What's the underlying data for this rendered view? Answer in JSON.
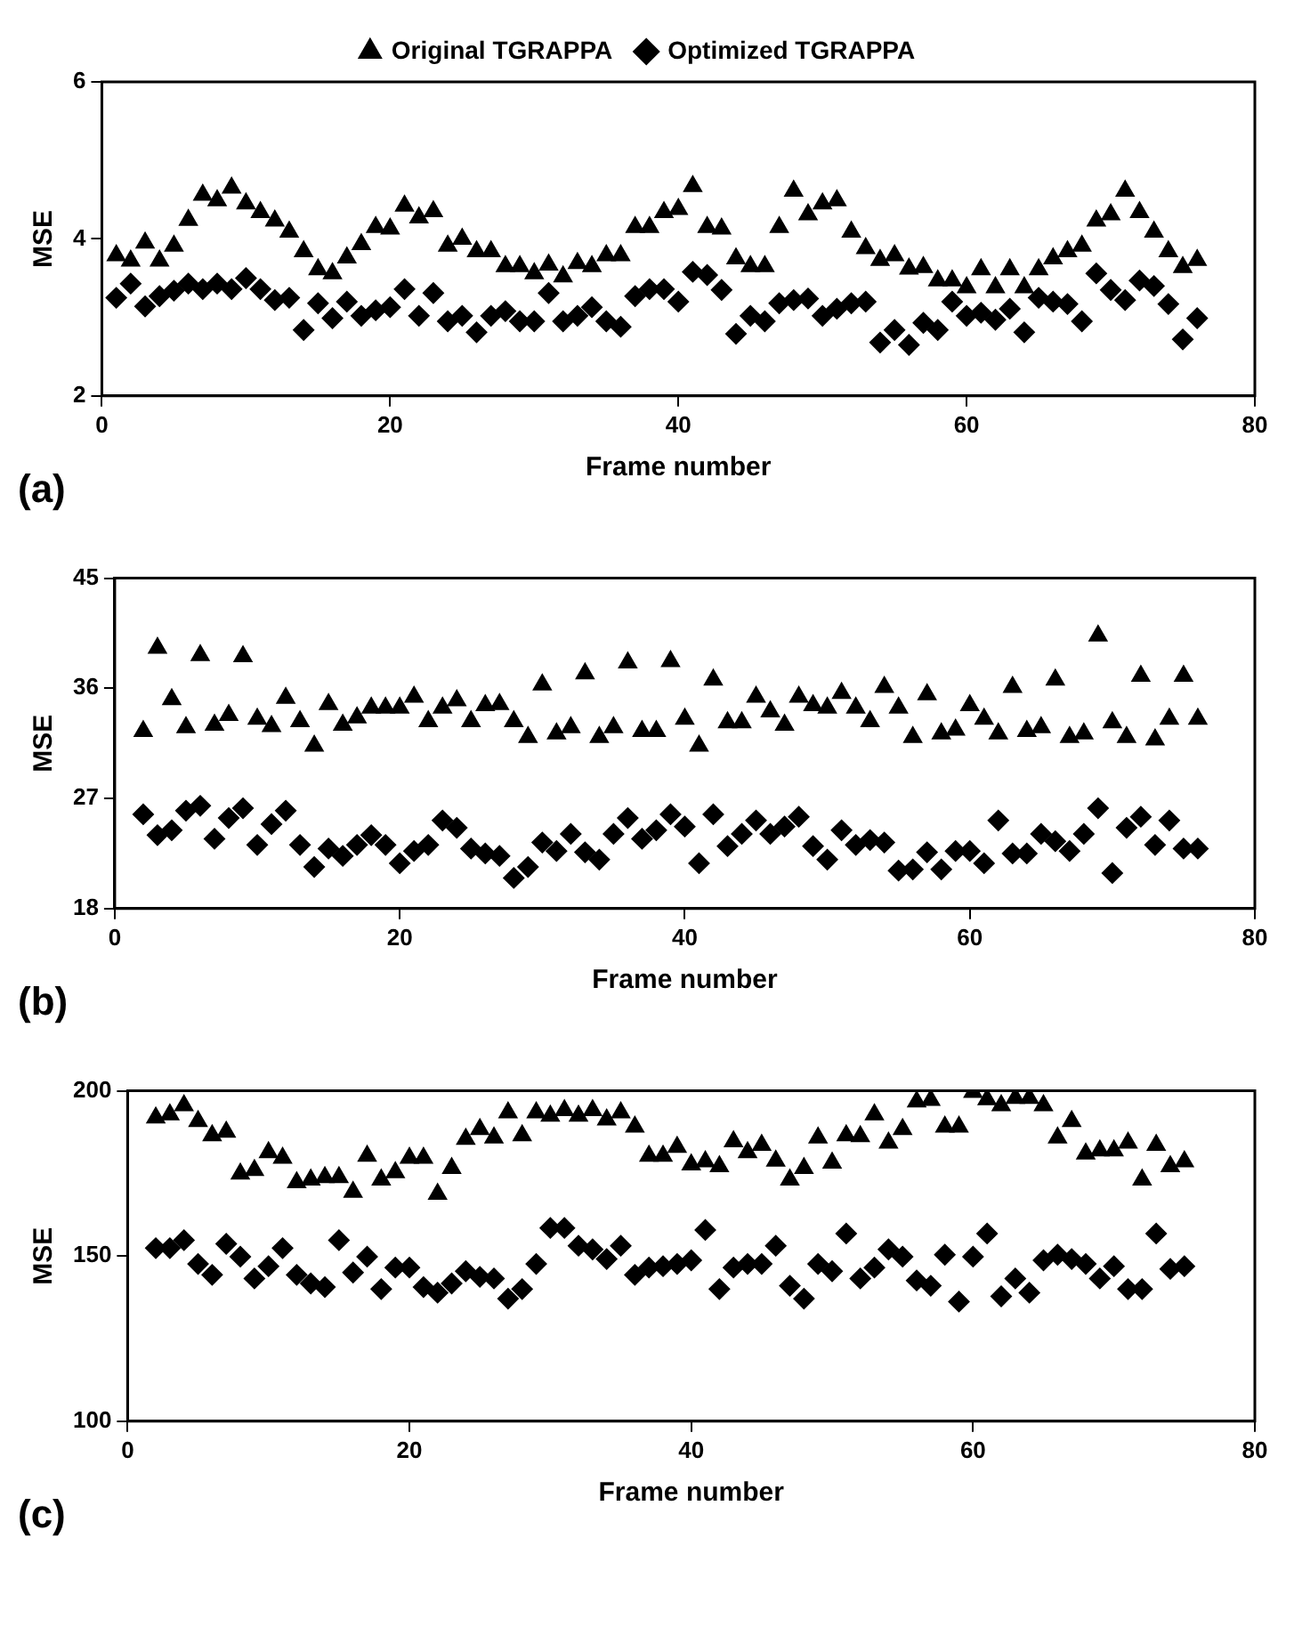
{
  "chart_data": [
    {
      "type": "scatter",
      "xlabel": "Frame number",
      "ylabel": "MSE",
      "xlim": [
        0,
        80
      ],
      "xticks": [
        0,
        20,
        40,
        60,
        80
      ],
      "ylim": [
        2,
        6
      ],
      "yticks": [
        2,
        4,
        6
      ],
      "legend": "top",
      "annotations": [
        "(a)"
      ],
      "x": [
        1,
        2,
        3,
        4,
        5,
        6,
        7,
        8,
        9,
        10,
        11,
        12,
        13,
        14,
        15,
        16,
        17,
        18,
        19,
        20,
        21,
        22,
        23,
        24,
        25,
        26,
        27,
        28,
        29,
        30,
        31,
        32,
        33,
        34,
        35,
        36,
        37,
        38,
        39,
        40,
        41,
        42,
        43,
        44,
        45,
        46,
        47,
        48,
        49,
        50,
        51,
        52,
        53,
        54,
        55,
        56,
        57,
        58,
        59,
        60,
        61,
        62,
        63,
        64,
        65,
        66,
        67,
        68,
        69,
        70,
        71,
        72,
        73,
        74,
        75,
        76
      ],
      "series": [
        {
          "name": "Original TGRAPPA",
          "color": "#000000",
          "marker": "triangle",
          "values": [
            3.79,
            3.72,
            3.95,
            3.72,
            3.91,
            4.24,
            4.56,
            4.49,
            4.65,
            4.45,
            4.34,
            4.23,
            4.09,
            3.84,
            3.61,
            3.56,
            3.76,
            3.93,
            4.15,
            4.13,
            4.42,
            4.27,
            4.35,
            3.91,
            4.0,
            3.84,
            3.84,
            3.65,
            3.65,
            3.56,
            3.67,
            3.52,
            3.69,
            3.65,
            3.79,
            3.79,
            4.15,
            4.15,
            4.34,
            4.38,
            4.67,
            4.15,
            4.13,
            3.75,
            3.65,
            3.65,
            4.15,
            4.61,
            4.31,
            4.45,
            4.49,
            4.09,
            3.88,
            3.73,
            3.79,
            3.62,
            3.64,
            3.47,
            3.47,
            3.38,
            3.61,
            3.38,
            3.61,
            3.38,
            3.61,
            3.75,
            3.84,
            3.91,
            4.23,
            4.31,
            4.61,
            4.34,
            4.09,
            3.84,
            3.64,
            3.73
          ]
        },
        {
          "name": "Optimized TGRAPPA",
          "color": "#000000",
          "marker": "diamond",
          "values": [
            3.25,
            3.43,
            3.14,
            3.27,
            3.34,
            3.43,
            3.36,
            3.43,
            3.36,
            3.5,
            3.36,
            3.22,
            3.25,
            2.84,
            3.18,
            2.99,
            3.2,
            3.02,
            3.09,
            3.13,
            3.36,
            3.02,
            3.31,
            2.95,
            3.02,
            2.81,
            3.02,
            3.08,
            2.95,
            2.95,
            3.31,
            2.95,
            3.02,
            3.13,
            2.95,
            2.88,
            3.27,
            3.36,
            3.36,
            3.2,
            3.58,
            3.54,
            3.35,
            2.79,
            3.02,
            2.95,
            3.18,
            3.22,
            3.24,
            3.02,
            3.11,
            3.18,
            3.2,
            2.68,
            2.84,
            2.65,
            2.93,
            2.84,
            3.2,
            3.02,
            3.06,
            2.97,
            3.11,
            2.81,
            3.25,
            3.2,
            3.17,
            2.95,
            3.56,
            3.35,
            3.22,
            3.47,
            3.4,
            3.17,
            2.72,
            2.99
          ]
        }
      ]
    },
    {
      "type": "scatter",
      "xlabel": "Frame number",
      "ylabel": "MSE",
      "xlim": [
        0,
        80
      ],
      "xticks": [
        0,
        20,
        40,
        60,
        80
      ],
      "ylim": [
        18,
        45
      ],
      "yticks": [
        18,
        27,
        36,
        45
      ],
      "annotations": [
        "(b)"
      ],
      "x": [
        2,
        3,
        4,
        5,
        6,
        7,
        8,
        9,
        10,
        11,
        12,
        13,
        14,
        15,
        16,
        17,
        18,
        19,
        20,
        21,
        22,
        23,
        24,
        25,
        26,
        27,
        28,
        29,
        30,
        31,
        32,
        33,
        34,
        35,
        36,
        37,
        38,
        39,
        40,
        41,
        42,
        43,
        44,
        45,
        46,
        47,
        48,
        49,
        50,
        51,
        52,
        53,
        54,
        55,
        56,
        57,
        58,
        59,
        60,
        61,
        62,
        63,
        64,
        65,
        66,
        67,
        68,
        69,
        70,
        71,
        72,
        73,
        74,
        75,
        76
      ],
      "series": [
        {
          "color": "#000000",
          "marker": "triangle",
          "values": [
            32.5,
            39.3,
            35.1,
            32.8,
            38.7,
            33.0,
            33.8,
            38.6,
            33.5,
            32.9,
            35.2,
            33.3,
            31.3,
            34.7,
            33.0,
            33.6,
            34.4,
            34.4,
            34.4,
            35.3,
            33.3,
            34.4,
            35.0,
            33.3,
            34.6,
            34.7,
            33.3,
            32.0,
            36.3,
            32.3,
            32.8,
            37.2,
            32.0,
            32.8,
            38.1,
            32.5,
            32.5,
            38.2,
            33.5,
            31.3,
            36.7,
            33.2,
            33.2,
            35.3,
            34.1,
            33.0,
            35.3,
            34.6,
            34.4,
            35.6,
            34.4,
            33.3,
            36.1,
            34.4,
            32.0,
            35.5,
            32.3,
            32.6,
            34.6,
            33.5,
            32.3,
            36.1,
            32.5,
            32.8,
            36.7,
            32.0,
            32.3,
            40.3,
            33.2,
            32.0,
            37.0,
            31.8,
            33.5,
            37.0,
            33.5
          ]
        },
        {
          "color": "#000000",
          "marker": "diamond",
          "values": [
            25.7,
            24.0,
            24.4,
            26.0,
            26.4,
            23.7,
            25.4,
            26.2,
            23.2,
            24.9,
            26.0,
            23.2,
            21.4,
            22.9,
            22.3,
            23.2,
            24.0,
            23.2,
            21.7,
            22.7,
            23.2,
            25.2,
            24.6,
            22.9,
            22.5,
            22.3,
            20.5,
            21.4,
            23.4,
            22.7,
            24.1,
            22.6,
            22.0,
            24.1,
            25.4,
            23.7,
            24.4,
            25.7,
            24.7,
            21.7,
            25.7,
            23.1,
            24.1,
            25.2,
            24.1,
            24.7,
            25.5,
            23.1,
            22.0,
            24.4,
            23.2,
            23.6,
            23.4,
            21.1,
            21.2,
            22.6,
            21.2,
            22.7,
            22.7,
            21.7,
            25.2,
            22.5,
            22.5,
            24.1,
            23.5,
            22.7,
            24.1,
            26.2,
            20.9,
            24.6,
            25.5,
            23.2,
            25.2,
            22.9,
            22.9
          ]
        }
      ]
    },
    {
      "type": "scatter",
      "xlabel": "Frame number",
      "ylabel": "MSE",
      "xlim": [
        0,
        80
      ],
      "xticks": [
        0,
        20,
        40,
        60,
        80
      ],
      "ylim": [
        100,
        200
      ],
      "yticks": [
        100,
        150,
        200
      ],
      "annotations": [
        "(c)"
      ],
      "x": [
        2,
        3,
        4,
        5,
        6,
        7,
        8,
        9,
        10,
        11,
        12,
        13,
        14,
        15,
        16,
        17,
        18,
        19,
        20,
        21,
        22,
        23,
        24,
        25,
        26,
        27,
        28,
        29,
        30,
        31,
        32,
        33,
        34,
        35,
        36,
        37,
        38,
        39,
        40,
        41,
        42,
        43,
        44,
        45,
        46,
        47,
        48,
        49,
        50,
        51,
        52,
        53,
        54,
        55,
        56,
        57,
        58,
        59,
        60,
        61,
        62,
        63,
        64,
        65,
        66,
        67,
        68,
        69,
        70,
        71,
        72,
        73,
        74,
        75
      ],
      "series": [
        {
          "color": "#000000",
          "marker": "triangle",
          "values": [
            191.9,
            192.8,
            195.6,
            190.8,
            186.5,
            187.6,
            174.9,
            176.0,
            181.4,
            179.7,
            172.3,
            173.1,
            173.8,
            173.8,
            169.4,
            180.3,
            173.1,
            175.3,
            179.7,
            179.7,
            168.8,
            176.6,
            185.4,
            188.4,
            185.8,
            193.4,
            186.5,
            193.4,
            192.4,
            194.1,
            192.4,
            194.1,
            191.3,
            193.4,
            189.1,
            180.3,
            180.3,
            183.0,
            177.7,
            178.6,
            177.1,
            184.7,
            181.4,
            183.6,
            178.8,
            173.1,
            176.6,
            185.8,
            178.2,
            186.5,
            186.2,
            192.8,
            184.3,
            188.4,
            196.7,
            197.2,
            189.1,
            189.1,
            199.6,
            197.4,
            195.6,
            197.8,
            197.8,
            195.6,
            185.8,
            190.8,
            181.0,
            181.9,
            181.9,
            184.3,
            173.1,
            183.6,
            177.1,
            178.6
          ]
        },
        {
          "color": "#000000",
          "marker": "diamond",
          "values": [
            152.4,
            152.4,
            154.8,
            147.6,
            144.3,
            153.7,
            149.8,
            143.2,
            146.9,
            152.4,
            144.3,
            141.7,
            140.6,
            154.8,
            145.0,
            149.8,
            140.0,
            146.5,
            146.5,
            140.6,
            138.9,
            141.7,
            145.4,
            143.7,
            143.2,
            137.1,
            140.0,
            147.6,
            158.5,
            158.5,
            153.1,
            152.0,
            149.1,
            153.1,
            144.3,
            146.5,
            146.9,
            147.6,
            148.7,
            157.9,
            140.0,
            146.5,
            147.6,
            147.6,
            153.1,
            141.0,
            137.1,
            147.6,
            145.4,
            156.8,
            143.2,
            146.5,
            152.0,
            149.8,
            142.6,
            141.0,
            150.4,
            136.2,
            149.8,
            156.8,
            137.8,
            143.2,
            138.9,
            148.7,
            150.4,
            149.1,
            147.6,
            143.2,
            146.9,
            140.0,
            140.0,
            156.8,
            146.1,
            146.9
          ]
        }
      ]
    }
  ]
}
